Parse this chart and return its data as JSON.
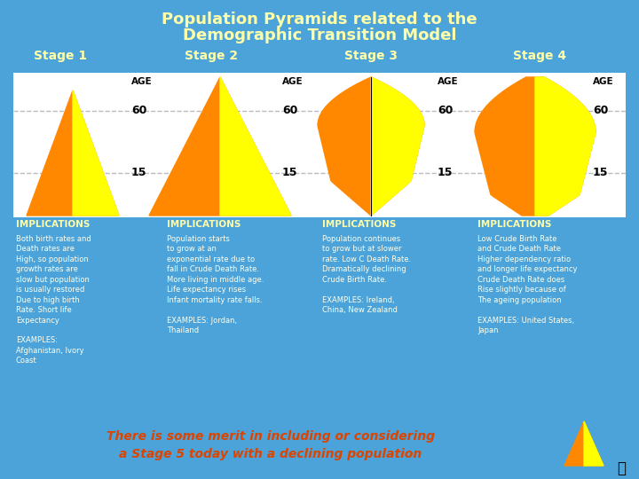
{
  "title_line1": "Population Pyramids related to the",
  "title_line2": "Demographic Transition Model",
  "title_color": "#FFFFAA",
  "bg_color": "#4BA3D9",
  "stages": [
    "Stage 1",
    "Stage 2",
    "Stage 3",
    "Stage 4"
  ],
  "stage_color": "#FFFFAA",
  "implications_text": "IMPLICATIONS",
  "implications_color": "#FFFFAA",
  "body_text_color": "#FFFFEE",
  "stage1_body": "Both birth rates and\nDeath rates are\nHigh, so population\ngrowth rates are\nslow but population\nis usually restored\nDue to high birth\nRate. Short life\nExpectancy\n\nEXAMPLES:\nAfghanistan, Ivory\nCoast",
  "stage2_body": "Population starts\nto grow at an\nexponential rate due to\nfall in Crude Death Rate.\nMore living in middle age.\nLife expectancy rises\nInfant mortality rate falls.\n\nEXAMPLES: Jordan,\nThailand",
  "stage3_body": "Population continues\nto grow but at slower\nrate. Low C Death Rate.\nDramatically declining\nCrude Birth Rate.\n\nEXAMPLES: Ireland,\nChina, New Zealand",
  "stage4_body": "Low Crude Birth Rate\nand Crude Death Rate\nHigher dependency ratio\nand longer life expectancy\nCrude Death Rate does\nRise slightly because of\nThe ageing population\n\nEXAMPLES: United States,\nJapan",
  "footer_text": "There is some merit in including or considering\na Stage 5 today with a declining population",
  "footer_color": "#DD4400",
  "orange_color": "#FF8800",
  "yellow_color": "#FFFF00",
  "white_box_color": "#FFFFFF"
}
